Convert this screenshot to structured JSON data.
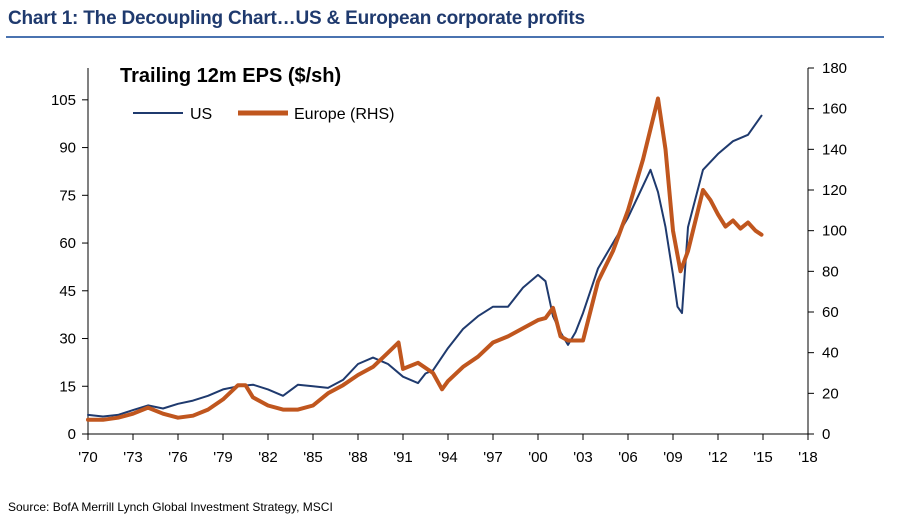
{
  "title": "Chart 1: The Decoupling Chart…US & European corporate profits",
  "source": "Source: BofA Merrill Lynch Global Investment Strategy, MSCI",
  "chart_data": {
    "type": "line",
    "subtitle": "Trailing 12m EPS ($/sh)",
    "x_ticks": [
      "'70",
      "'73",
      "'76",
      "'79",
      "'82",
      "'85",
      "'88",
      "'91",
      "'94",
      "'97",
      "'00",
      "'03",
      "'06",
      "'09",
      "'12",
      "'15",
      "'18"
    ],
    "xlim": [
      1970,
      2018
    ],
    "y_left": {
      "lim": [
        0,
        115
      ],
      "ticks": [
        0,
        15,
        30,
        45,
        60,
        75,
        90,
        105
      ]
    },
    "y_right": {
      "lim": [
        0,
        180
      ],
      "ticks": [
        0,
        20,
        40,
        60,
        80,
        100,
        120,
        140,
        160,
        180
      ]
    },
    "legend_position": "top-left",
    "grid": false,
    "series": [
      {
        "name": "US",
        "axis": "left",
        "color": "#1f3a6e",
        "x": [
          1970,
          1971,
          1972,
          1973,
          1974,
          1975,
          1976,
          1977,
          1978,
          1979,
          1980,
          1981,
          1982,
          1983,
          1984,
          1985,
          1986,
          1987,
          1988,
          1989,
          1990,
          1991,
          1992,
          1992.5,
          1993,
          1994,
          1995,
          1996,
          1997,
          1998,
          1999,
          2000,
          2000.5,
          2001,
          2001.5,
          2002,
          2002.5,
          2003,
          2004,
          2005,
          2006,
          2007,
          2007.5,
          2008,
          2008.5,
          2009,
          2009.3,
          2009.6,
          2010,
          2011,
          2012,
          2013,
          2014,
          2014.9
        ],
        "values": [
          6,
          5.5,
          6,
          7.5,
          9,
          8,
          9.5,
          10.5,
          12,
          14,
          15,
          15.5,
          14,
          12,
          15.5,
          15,
          14.5,
          17,
          22,
          24,
          22,
          18,
          16,
          19,
          20,
          27,
          33,
          37,
          40,
          40,
          46,
          50,
          48,
          37,
          32,
          28,
          32,
          38,
          52,
          60,
          68,
          78,
          83,
          76,
          65,
          50,
          40,
          38,
          65,
          83,
          88,
          92,
          94,
          100
        ]
      },
      {
        "name": "Europe (RHS)",
        "axis": "right",
        "color": "#c0561e",
        "x": [
          1970,
          1971,
          1972,
          1973,
          1974,
          1975,
          1976,
          1977,
          1978,
          1979,
          1980,
          1980.5,
          1981,
          1982,
          1983,
          1984,
          1985,
          1986,
          1987,
          1988,
          1989,
          1990,
          1990.7,
          1991,
          1992,
          1993,
          1993.6,
          1994,
          1995,
          1996,
          1997,
          1998,
          1999,
          2000,
          2000.5,
          2001,
          2001.5,
          2002,
          2003,
          2004,
          2005,
          2006,
          2007,
          2007.5,
          2008,
          2008.5,
          2009,
          2009.5,
          2010,
          2010.5,
          2011,
          2011.5,
          2012,
          2012.5,
          2013,
          2013.5,
          2014,
          2014.5,
          2014.9
        ],
        "values": [
          7,
          7,
          8,
          10,
          13,
          10,
          8,
          9,
          12,
          17,
          24,
          24,
          18,
          14,
          12,
          12,
          14,
          20,
          24,
          29,
          33,
          40,
          45,
          32,
          35,
          30,
          22,
          26,
          33,
          38,
          45,
          48,
          52,
          56,
          57,
          62,
          48,
          46,
          46,
          75,
          90,
          110,
          135,
          150,
          165,
          140,
          100,
          80,
          90,
          105,
          120,
          115,
          108,
          102,
          105,
          101,
          104,
          100,
          98
        ]
      }
    ]
  }
}
